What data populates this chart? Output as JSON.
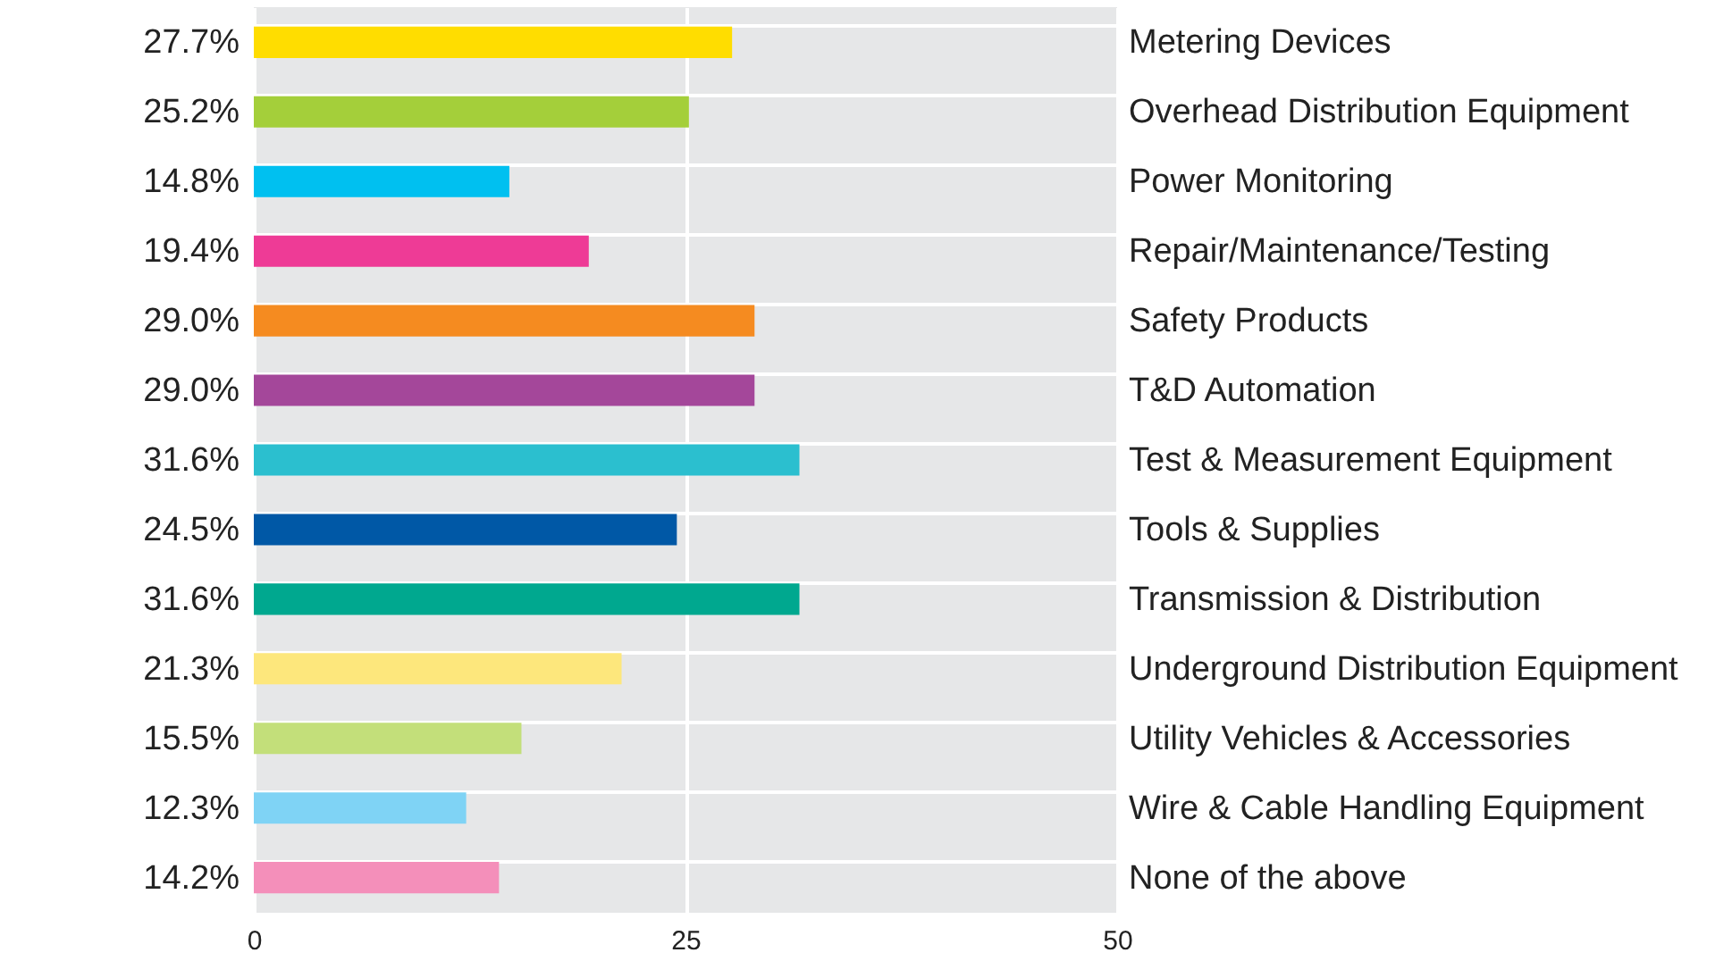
{
  "chart_data": {
    "type": "bar",
    "orientation": "horizontal",
    "categories": [
      "Metering Devices",
      "Overhead Distribution Equipment",
      "Power Monitoring",
      "Repair/Maintenance/Testing",
      "Safety Products",
      "T&D Automation",
      "Test & Measurement Equipment",
      "Tools & Supplies",
      "Transmission & Distribution",
      "Underground Distribution Equipment",
      "Utility Vehicles & Accessories",
      "Wire & Cable Handling Equipment",
      "None of the above"
    ],
    "values": [
      27.7,
      25.2,
      14.8,
      19.4,
      29.0,
      29.0,
      31.6,
      24.5,
      31.6,
      21.3,
      15.5,
      12.3,
      14.2
    ],
    "value_labels": [
      "27.7%",
      "25.2%",
      "14.8%",
      "19.4%",
      "29.0%",
      "29.0%",
      "31.6%",
      "24.5%",
      "31.6%",
      "21.3%",
      "15.5%",
      "12.3%",
      "14.2%"
    ],
    "colors": [
      "#ffdd00",
      "#a4cf3a",
      "#00c0f0",
      "#ee3b96",
      "#f58b20",
      "#a4479a",
      "#2bbfcf",
      "#0058a6",
      "#00a88f",
      "#fde77c",
      "#c3df7a",
      "#7fd3f5",
      "#f48fba"
    ],
    "xlim": [
      0,
      50
    ],
    "xticks": [
      0,
      25,
      50
    ],
    "grid": true,
    "legend": false
  }
}
